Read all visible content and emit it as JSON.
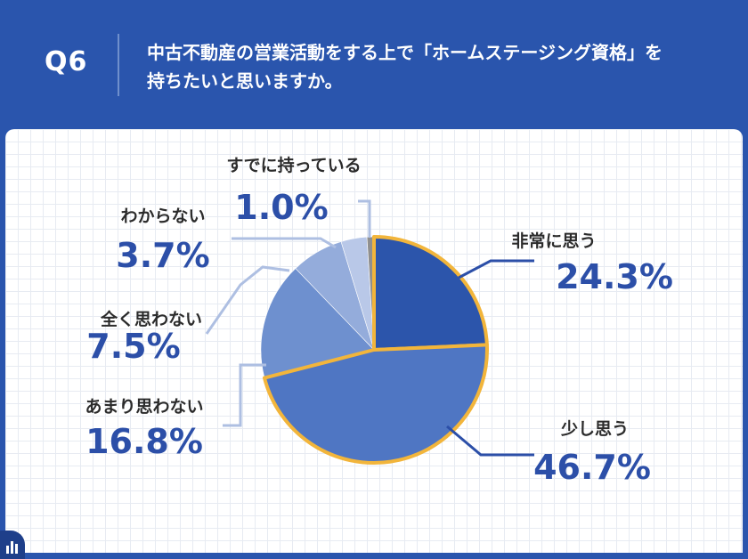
{
  "header": {
    "q_number": "Q6",
    "question_line1": "中古不動産の営業活動をする上で「ホームステージング資格」を",
    "question_line2": "持ちたいと思いますか。"
  },
  "chart_data": {
    "type": "pie",
    "title": "",
    "slices": [
      {
        "label": "非常に思う",
        "value": 24.3,
        "value_label": "24.3%",
        "color": "#2c55ab",
        "highlight": true
      },
      {
        "label": "少し思う",
        "value": 46.7,
        "value_label": "46.7%",
        "color": "#4f76c3",
        "highlight": true
      },
      {
        "label": "あまり思わない",
        "value": 16.8,
        "value_label": "16.8%",
        "color": "#6e90cf",
        "highlight": false
      },
      {
        "label": "全く思わない",
        "value": 7.5,
        "value_label": "7.5%",
        "color": "#94acdb",
        "highlight": false
      },
      {
        "label": "わからない",
        "value": 3.7,
        "value_label": "3.7%",
        "color": "#b9c8e8",
        "highlight": false
      },
      {
        "label": "すでに持っている",
        "value": 1.0,
        "value_label": "1.0%",
        "color": "#8f8f8f",
        "highlight": false
      }
    ],
    "highlight_color": "#f2b53b",
    "leader_color": "#2c4fa8",
    "leader_light_color": "#aebfe2"
  }
}
